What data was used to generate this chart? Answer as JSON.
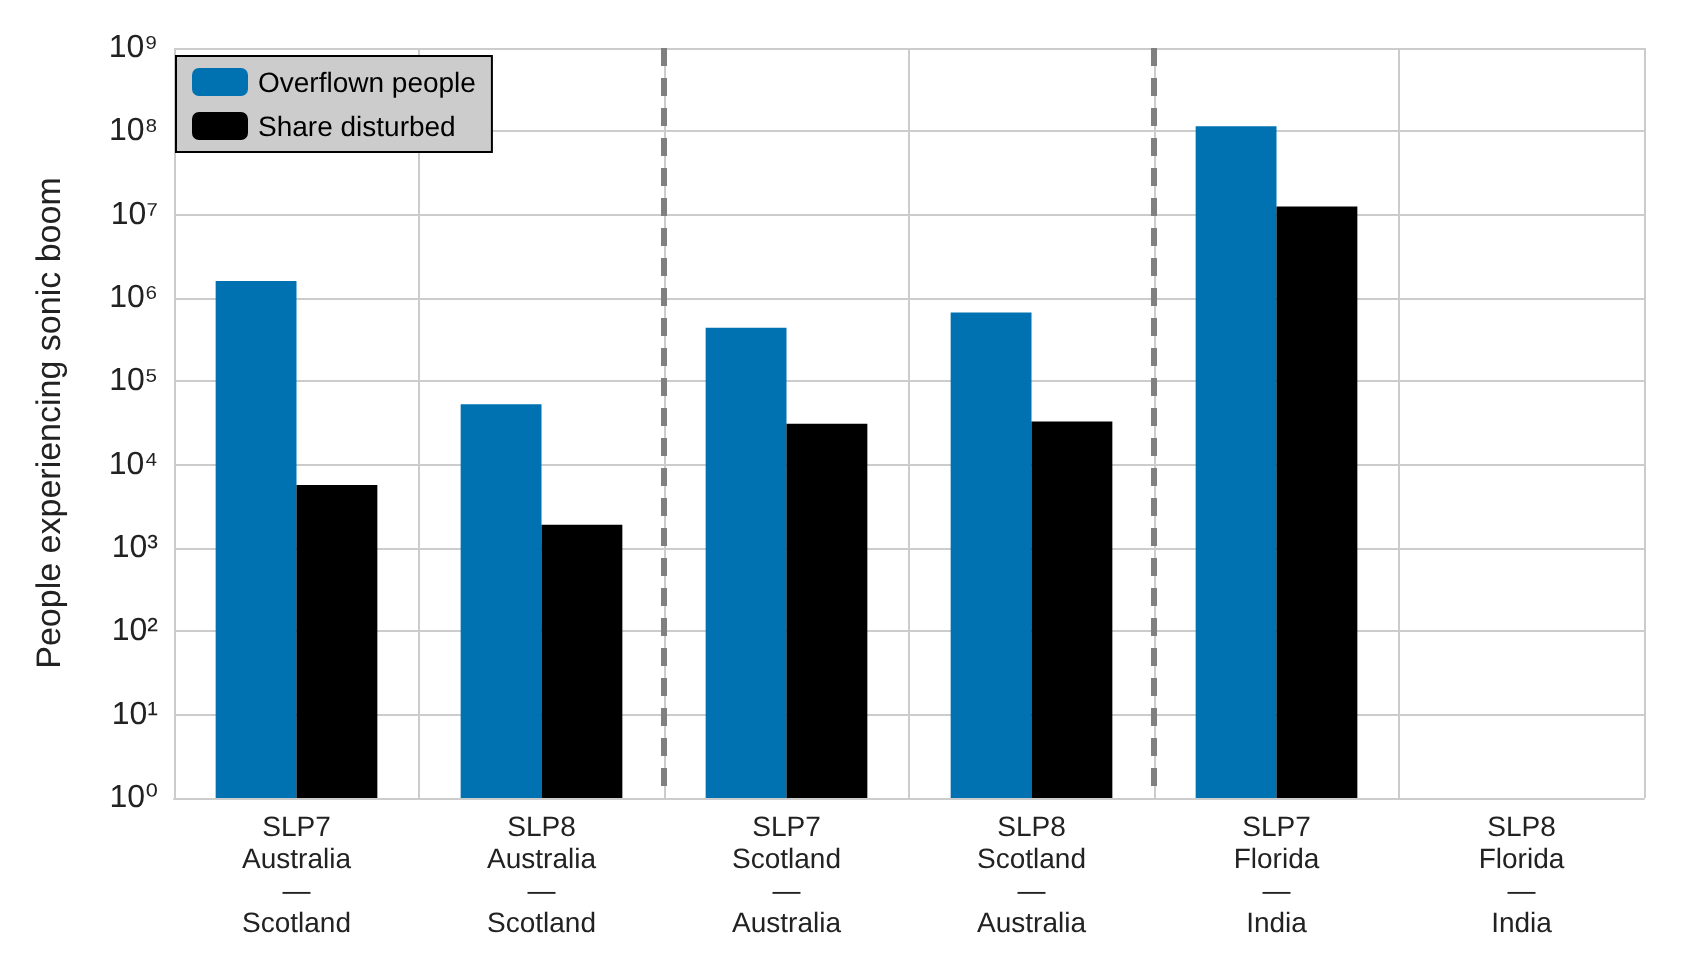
{
  "chart_data": {
    "type": "bar",
    "ylabel": "People experiencing sonic boom",
    "categories": [
      "SLP7\nAustralia\n—\nScotland",
      "SLP8\nAustralia\n—\nScotland",
      "SLP7\nScotland\n—\nAustralia",
      "SLP8\nScotland\n—\nAustralia",
      "SLP7\nFlorida\n—\nIndia",
      "SLP8\nFlorida\n—\nIndia"
    ],
    "series": [
      {
        "name": "Overflown people",
        "color": "#0072b2",
        "values": [
          1600000,
          53000,
          440000,
          670000,
          115000000,
          null
        ]
      },
      {
        "name": "Share disturbed",
        "color": "#000000",
        "values": [
          5700,
          1900,
          31000,
          33000,
          12500000,
          null
        ]
      }
    ],
    "log": "y",
    "ylim": [
      1,
      1000000000
    ],
    "yticks": [
      {
        "value": 1,
        "label": "10⁰"
      },
      {
        "value": 10,
        "label": "10¹"
      },
      {
        "value": 100,
        "label": "10²"
      },
      {
        "value": 1000,
        "label": "10³"
      },
      {
        "value": 10000,
        "label": "10⁴"
      },
      {
        "value": 100000,
        "label": "10⁵"
      },
      {
        "value": 1000000,
        "label": "10⁶"
      },
      {
        "value": 10000000,
        "label": "10⁷"
      },
      {
        "value": 100000000,
        "label": "10⁸"
      },
      {
        "value": 1000000000,
        "label": "10⁹"
      }
    ],
    "grid": true,
    "legend": "top left"
  }
}
